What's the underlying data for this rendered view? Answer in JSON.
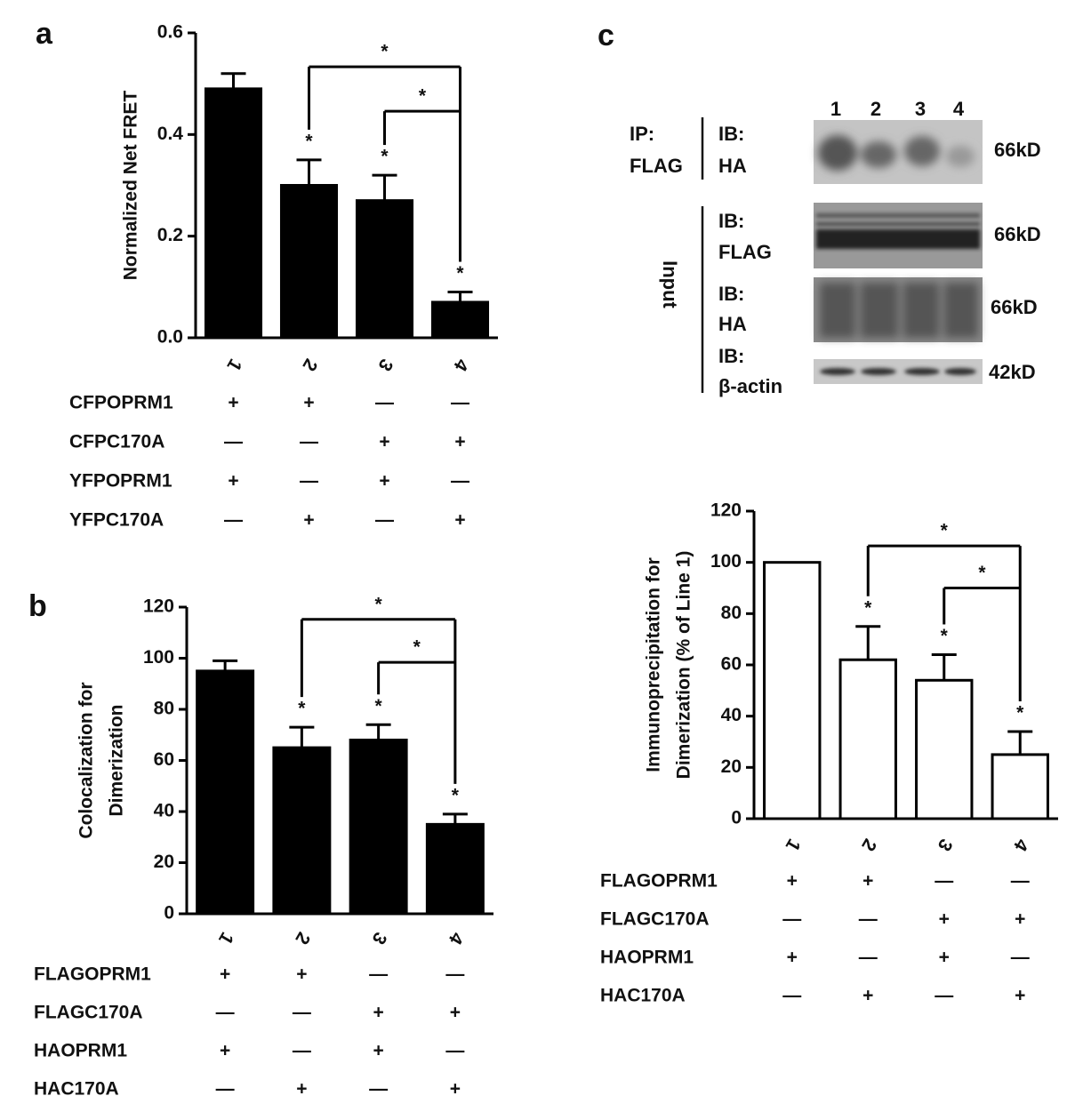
{
  "panel_labels": [
    "a",
    "b",
    "c"
  ],
  "chart_data": [
    {
      "type": "bar",
      "ylabel": [
        "Normalized Net FRET"
      ],
      "categories": [
        "1",
        "2",
        "3",
        "4"
      ],
      "values": [
        0.49,
        0.3,
        0.27,
        0.07
      ],
      "errors": [
        0.03,
        0.05,
        0.05,
        0.02
      ],
      "color": "#000000",
      "edgecolor": "#000000",
      "ylim": [
        0,
        0.6
      ],
      "yticks": [
        {
          "value": 0,
          "label": "0.0"
        },
        0.2,
        0.4,
        0.6
      ],
      "bar_stars": [
        null,
        "*",
        "*",
        "*"
      ],
      "brackets": [
        "*",
        "*"
      ],
      "conditions": [
        {
          "name": "CFPOPRM1",
          "marks": [
            "+",
            "+",
            "—",
            "—"
          ]
        },
        {
          "name": "CFPC170A",
          "marks": [
            "—",
            "—",
            "+",
            "+"
          ]
        },
        {
          "name": "YFPOPRM1",
          "marks": [
            "+",
            "—",
            "+",
            "—"
          ]
        },
        {
          "name": "YFPC170A",
          "marks": [
            "—",
            "+",
            "—",
            "+"
          ]
        }
      ]
    },
    {
      "type": "bar",
      "ylabel": [
        "Colocalization for",
        "Dimerization"
      ],
      "categories": [
        "1",
        "2",
        "3",
        "4"
      ],
      "values": [
        95,
        65,
        68,
        35
      ],
      "errors": [
        4,
        8,
        6,
        4
      ],
      "color": "#000000",
      "edgecolor": "#000000",
      "ylim": [
        0,
        120
      ],
      "yticks": [
        0,
        20,
        40,
        60,
        80,
        100,
        120
      ],
      "bar_stars": [
        null,
        "*",
        "*",
        "*"
      ],
      "brackets": [
        "*",
        "*"
      ],
      "conditions": [
        {
          "name": "FLAGOPRM1",
          "marks": [
            "+",
            "+",
            "—",
            "—"
          ]
        },
        {
          "name": "FLAGC170A",
          "marks": [
            "—",
            "—",
            "+",
            "+"
          ]
        },
        {
          "name": "HAOPRM1",
          "marks": [
            "+",
            "—",
            "+",
            "—"
          ]
        },
        {
          "name": "HAC170A",
          "marks": [
            "—",
            "+",
            "—",
            "+"
          ]
        }
      ]
    },
    {
      "type": "bar",
      "ylabel": [
        "Immunoprecipitation  for",
        "Dimerization (% of Line 1)"
      ],
      "categories": [
        "1",
        "2",
        "3",
        "4"
      ],
      "values": [
        100,
        62,
        54,
        25
      ],
      "errors": [
        null,
        13,
        10,
        9
      ],
      "color": "#ffffff",
      "edgecolor": "#000000",
      "ylim": [
        0,
        120
      ],
      "yticks": [
        0,
        20,
        40,
        60,
        80,
        100,
        120
      ],
      "bar_stars": [
        null,
        "*",
        "*",
        "*"
      ],
      "brackets": [
        "*",
        "*"
      ],
      "conditions": [
        {
          "name": "FLAGOPRM1",
          "marks": [
            "+",
            "+",
            "—",
            "—"
          ]
        },
        {
          "name": "FLAGC170A",
          "marks": [
            "—",
            "—",
            "+",
            "+"
          ]
        },
        {
          "name": "HAOPRM1",
          "marks": [
            "+",
            "—",
            "+",
            "—"
          ]
        },
        {
          "name": "HAC170A",
          "marks": [
            "—",
            "+",
            "—",
            "+"
          ]
        }
      ]
    }
  ],
  "blot": {
    "lanes": [
      "1",
      "2",
      "3",
      "4"
    ],
    "ip_label": [
      "IP:",
      "FLAG"
    ],
    "ip_blot": {
      "ib": [
        "IB:",
        "HA"
      ],
      "size": "66kD"
    },
    "input_label": "Input",
    "input_blots": [
      {
        "ib": [
          "IB:",
          "FLAG"
        ],
        "size": "66kD"
      },
      {
        "ib": [
          "IB:",
          "HA"
        ],
        "size": "66kD"
      },
      {
        "ib": [
          "IB:",
          "β-actin"
        ],
        "size": "42kD"
      }
    ]
  }
}
